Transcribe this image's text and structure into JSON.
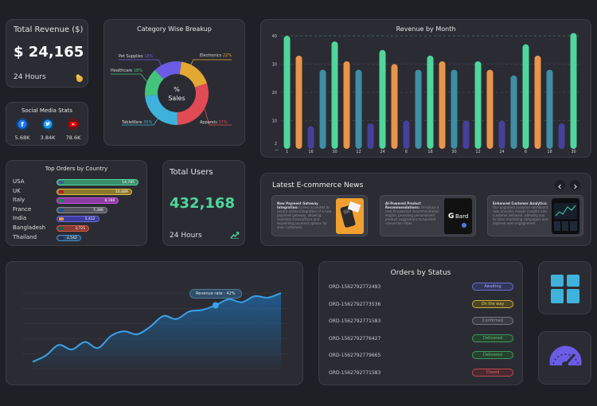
{
  "total_revenue": {
    "title": "Total Revenue ($)",
    "value": "$ 24,165",
    "period": "24 Hours",
    "icon": "coins-icon"
  },
  "social": {
    "title": "Social Media Stats",
    "items": [
      {
        "name": "facebook-icon",
        "color": "#1877f2",
        "count": "5.68K"
      },
      {
        "name": "twitter-icon",
        "color": "#1d9bf0",
        "count": "3.84K"
      },
      {
        "name": "youtube-icon",
        "color": "#ff0000",
        "count": "78.6K"
      }
    ]
  },
  "category": {
    "title": "Category Wise Breakup",
    "center_top": "%",
    "center_bottom": "Sales",
    "chart_data": {
      "type": "pie",
      "slices": [
        {
          "label": "Electronics",
          "value": 22,
          "color": "#e3a733"
        },
        {
          "label": "Apparels",
          "value": 37,
          "color": "#e14b55"
        },
        {
          "label": "TableWare",
          "value": 30,
          "color": "#3fb2dc"
        },
        {
          "label": "Healthcare",
          "value": 18,
          "color": "#44c47a"
        },
        {
          "label": "Pet Supplies",
          "value": 18,
          "color": "#6b5ce7"
        }
      ]
    },
    "labels": {
      "electronics": "Electronics",
      "electronics_pct": "22%",
      "apparels": "Apparels",
      "apparels_pct": "37%",
      "tableware": "TableWare",
      "tableware_pct": "30%",
      "healthcare": "Healthcare",
      "healthcare_pct": "18%",
      "pet": "Pet Supplies",
      "pet_pct": "18%"
    }
  },
  "revenue_month": {
    "title": "Revenue by Month",
    "chart_data": {
      "type": "bar",
      "ylim": [
        0,
        40
      ],
      "yticks": [
        2,
        10,
        20,
        30,
        40
      ],
      "categories": [
        "1",
        "",
        "16",
        "",
        "30",
        "",
        "12",
        "",
        "24",
        "",
        "6",
        "",
        "18",
        "",
        "30",
        "",
        "12",
        "",
        "24",
        "",
        "6",
        "",
        "18",
        "",
        "30"
      ],
      "values": [
        40,
        33,
        8,
        28,
        38,
        31,
        28,
        9,
        35,
        30,
        10,
        28,
        33,
        31,
        28,
        10,
        31,
        28,
        10,
        26,
        37,
        33,
        28,
        9,
        41
      ],
      "colors": [
        "#4fd69c",
        "#e8944a",
        "#45419a",
        "#3e8ea5",
        "#4fd69c",
        "#e8944a",
        "#3e8ea5",
        "#45419a",
        "#4fd69c",
        "#e8944a",
        "#45419a",
        "#3e8ea5",
        "#4fd69c",
        "#e8944a",
        "#3e8ea5",
        "#45419a",
        "#4fd69c",
        "#e8944a",
        "#45419a",
        "#3e8ea5",
        "#4fd69c",
        "#e8944a",
        "#3e8ea5",
        "#45419a",
        "#4fd69c"
      ]
    }
  },
  "countries": {
    "title": "Top Orders by Country",
    "items": [
      {
        "name": "USA",
        "value": "14,785",
        "fill": 1.0,
        "color": "#3a8f6a",
        "border": "#4fd69c",
        "flag": "#3c5aa6"
      },
      {
        "name": "UK",
        "value": "10,489",
        "fill": 0.92,
        "color": "#8c7a2a",
        "border": "#d7b842",
        "flag": "#c8102e"
      },
      {
        "name": "Italy",
        "value": "8,188",
        "fill": 0.76,
        "color": "#8a3ca0",
        "border": "#c455e0",
        "flag": "#009246"
      },
      {
        "name": "France",
        "value": "7,386",
        "fill": 0.62,
        "color": "#555560",
        "border": "#8a8a95",
        "flag": "#0055a4"
      },
      {
        "name": "India",
        "value": "5,412",
        "fill": 0.52,
        "color": "#3c3ca0",
        "border": "#6b6be0",
        "flag": "#ff9933"
      },
      {
        "name": "Bangladesh",
        "value": "3,721",
        "fill": 0.4,
        "color": "#8a3a32",
        "border": "#d85a4a",
        "flag": "#006a4e"
      },
      {
        "name": "Thailand",
        "value": "2,542",
        "fill": 0.3,
        "color": "#2a4a6a",
        "border": "#4a8ac0",
        "flag": "#2d2a4a"
      }
    ]
  },
  "total_users": {
    "title": "Total Users",
    "value": "432,168",
    "period": "24 Hours",
    "icon": "trend-up-icon"
  },
  "news": {
    "title": "Latest E-commerce News",
    "prev_icon": "chevron-left-icon",
    "next_icon": "chevron-right-icon",
    "items": [
      {
        "headline": "New Payment Gateway Integration:",
        "body": "Lorem accented to secure online integration of a new payment gateway, allowing seamless transactions and expanding payment options for your customers.",
        "image": "credit-card-image"
      },
      {
        "headline": "AI-Powered Product Recommendations:",
        "body": "Introduce a new AI-powered recommendation engine, providing personalized product suggestions to boosted conversion rates.",
        "image": "bard-logo-image"
      },
      {
        "headline": "Enhanced Customer Analytics:",
        "body": "Our upgraded analytics dashboard now provides deeper insights into customer behavior, allowing you to tailor marketing campaigns and improve user engagement.",
        "image": "analytics-dashboard-image"
      }
    ]
  },
  "revenue_rate": {
    "tooltip": "Revenue rate : 42%",
    "chart_data": {
      "type": "area",
      "x": [
        0,
        1,
        2,
        3,
        4,
        5,
        6,
        7,
        8,
        9,
        10,
        11,
        12,
        13,
        14,
        15,
        16,
        17,
        18,
        19
      ],
      "y": [
        5,
        9,
        16,
        13,
        18,
        14,
        22,
        25,
        23,
        28,
        35,
        33,
        38,
        39,
        42,
        46,
        44,
        48,
        47,
        50
      ],
      "highlight_index": 14,
      "ylim": [
        0,
        60
      ]
    }
  },
  "orders_status": {
    "title": "Orders by Status",
    "items": [
      {
        "id": "ORD-1562792772493",
        "status": "Awaiting",
        "bg": "#33355a",
        "border": "#6a6fd8",
        "color": "#a6aaff"
      },
      {
        "id": "ORD-1562792773536",
        "status": "On the way",
        "bg": "#4a4425",
        "border": "#cdb144",
        "color": "#e5cb5c"
      },
      {
        "id": "ORD-1562792771583",
        "status": "Confirmed",
        "bg": "#3a3b42",
        "border": "#77787f",
        "color": "#9a9aa2"
      },
      {
        "id": "ORD-1562792776427",
        "status": "Delivered",
        "bg": "#27412f",
        "border": "#3f9a5a",
        "color": "#5fc07a"
      },
      {
        "id": "ORD-1562792779665",
        "status": "Delivered",
        "bg": "#27412f",
        "border": "#3f9a5a",
        "color": "#5fc07a"
      },
      {
        "id": "ORD-1562792771583",
        "status": "Closed",
        "bg": "#4a2a2e",
        "border": "#c04850",
        "color": "#e0626a"
      }
    ]
  },
  "tiles": {
    "apps_icon": "apps-grid-icon",
    "gauge_icon": "speedometer-icon",
    "accent": "#3fb2dc",
    "gauge_color": "#6b5ce7"
  }
}
